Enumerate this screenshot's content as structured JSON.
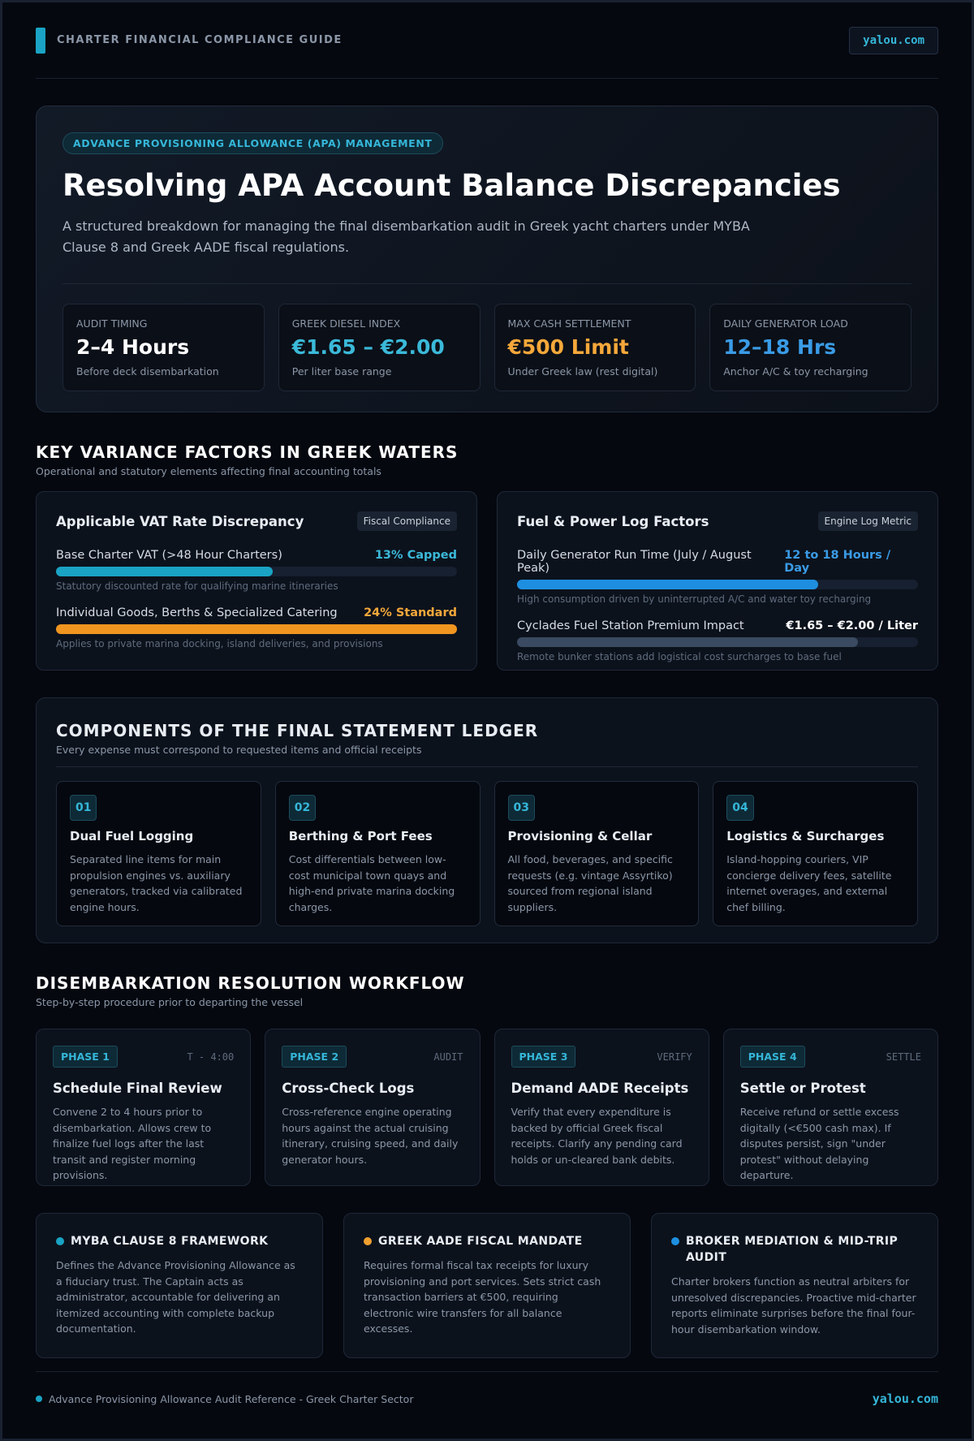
{
  "header": {
    "brand": "CHARTER FINANCIAL COMPLIANCE GUIDE",
    "site": "yalou.com"
  },
  "hero": {
    "tag": "ADVANCE PROVISIONING ALLOWANCE (APA) MANAGEMENT",
    "title": "Resolving APA Account Balance Discrepancies",
    "subtitle": "A structured breakdown for managing the final disembarkation audit in Greek yacht charters under MYBA Clause 8 and Greek AADE fiscal regulations.",
    "stats": [
      {
        "label": "AUDIT TIMING",
        "value": "2–4 Hours",
        "note": "Before deck disembarkation"
      },
      {
        "label": "GREEK DIESEL INDEX",
        "value": "€1.65 – €2.00",
        "note": "Per liter base range"
      },
      {
        "label": "MAX CASH SETTLEMENT",
        "value": "€500 Limit",
        "note": "Under Greek law (rest digital)"
      },
      {
        "label": "DAILY GENERATOR LOAD",
        "value": "12–18 Hrs",
        "note": "Anchor A/C & toy recharging"
      }
    ]
  },
  "variance": {
    "title": "KEY VARIANCE FACTORS IN GREEK WATERS",
    "subtitle": "Operational and statutory elements affecting final accounting totals",
    "cards": [
      {
        "title": "Applicable VAT Rate Discrepancy",
        "badge": "Fiscal Compliance",
        "items": [
          {
            "label": "Base Charter VAT (>48 Hour Charters)",
            "value": "13% Capped",
            "note": "Statutory discounted rate for qualifying marine itineraries"
          },
          {
            "label": "Individual Goods, Berths & Specialized Catering",
            "value": "24% Standard",
            "note": "Applies to private marina docking, island deliveries, and provisions"
          }
        ]
      },
      {
        "title": "Fuel & Power Log Factors",
        "badge": "Engine Log Metric",
        "items": [
          {
            "label": "Daily Generator Run Time (July / August Peak)",
            "value": "12 to 18 Hours / Day",
            "note": "High consumption driven by uninterrupted A/C and water toy recharging"
          },
          {
            "label": "Cyclades Fuel Station Premium Impact",
            "value": "€1.65 – €2.00 / Liter",
            "note": "Remote bunker stations add logistical cost surcharges to base fuel"
          }
        ]
      }
    ]
  },
  "ledger": {
    "title": "COMPONENTS OF THE FINAL STATEMENT LEDGER",
    "subtitle": "Every expense must correspond to requested items and official receipts",
    "items": [
      {
        "num": "01",
        "title": "Dual Fuel Logging",
        "text": "Separated line items for main propulsion engines vs. auxiliary generators, tracked via calibrated engine hours."
      },
      {
        "num": "02",
        "title": "Berthing & Port Fees",
        "text": "Cost differentials between low-cost municipal town quays and high-end private marina docking charges."
      },
      {
        "num": "03",
        "title": "Provisioning & Cellar",
        "text": "All food, beverages, and specific requests (e.g. vintage Assyrtiko) sourced from regional island suppliers."
      },
      {
        "num": "04",
        "title": "Logistics & Surcharges",
        "text": "Island-hopping couriers, VIP concierge delivery fees, satellite internet overages, and external chef billing."
      }
    ]
  },
  "workflow": {
    "title": "DISEMBARKATION RESOLUTION WORKFLOW",
    "subtitle": "Step-by-step procedure prior to departing the vessel",
    "phases": [
      {
        "phase": "PHASE 1",
        "code": "T - 4:00",
        "title": "Schedule Final Review",
        "text": "Convene 2 to 4 hours prior to disembarkation. Allows crew to finalize fuel logs after the last transit and register morning provisions."
      },
      {
        "phase": "PHASE 2",
        "code": "AUDIT",
        "title": "Cross-Check Logs",
        "text": "Cross-reference engine operating hours against the actual cruising itinerary, cruising speed, and daily generator hours."
      },
      {
        "phase": "PHASE 3",
        "code": "VERIFY",
        "title": "Demand AADE Receipts",
        "text": "Verify that every expenditure is backed by official Greek fiscal receipts. Clarify any pending card holds or un-cleared bank debits."
      },
      {
        "phase": "PHASE 4",
        "code": "SETTLE",
        "title": "Settle or Protest",
        "text": "Receive refund or settle excess digitally (<€500 cash max). If disputes persist, sign \"under protest\" without delaying departure."
      }
    ]
  },
  "notes": [
    {
      "title": "MYBA CLAUSE 8 FRAMEWORK",
      "text": "Defines the Advance Provisioning Allowance as a fiduciary trust. The Captain acts as administrator, accountable for delivering an itemized accounting with complete backup documentation."
    },
    {
      "title": "GREEK AADE FISCAL MANDATE",
      "text": "Requires formal fiscal tax receipts for luxury provisioning and port services. Sets strict cash transaction barriers at €500, requiring electronic wire transfers for all balance excesses."
    },
    {
      "title": "BROKER MEDIATION & MID-TRIP AUDIT",
      "text": "Charter brokers function as neutral arbiters for unresolved discrepancies. Proactive mid-charter reports eliminate surprises before the final four-hour disembarkation window."
    }
  ],
  "footer": {
    "text": "Advance Provisioning Allowance Audit Reference - Greek Charter Sector",
    "site": "yalou.com"
  }
}
